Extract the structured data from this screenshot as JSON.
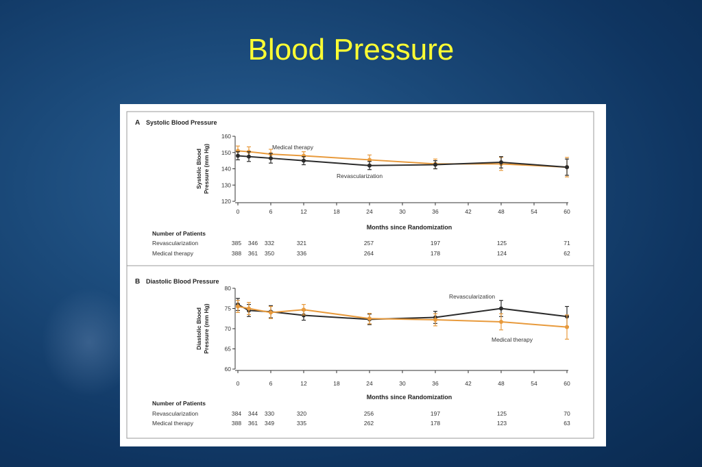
{
  "slide": {
    "title": "Blood Pressure"
  },
  "colors": {
    "revascularization": "#2b2b2b",
    "medical_therapy": "#e89a3c",
    "title": "#ffff33"
  },
  "chart_data": [
    {
      "type": "line",
      "panel_letter": "A",
      "title": "Systolic Blood Pressure",
      "xlabel": "Months since Randomization",
      "ylabel": [
        "Systolic Blood",
        "Pressure (mm Hg)"
      ],
      "xlim": [
        0,
        60
      ],
      "ylim": [
        120,
        160
      ],
      "xticks": [
        0,
        6,
        12,
        18,
        24,
        30,
        36,
        42,
        48,
        54,
        60
      ],
      "yticks": [
        120,
        130,
        140,
        150,
        160
      ],
      "grid": false,
      "x": [
        0,
        2,
        6,
        12,
        24,
        36,
        48,
        60
      ],
      "series": [
        {
          "name": "Medical therapy",
          "color": "#e89a3c",
          "values": [
            151,
            150.5,
            149,
            148,
            145.5,
            143,
            143,
            141
          ],
          "errors": [
            3,
            3,
            3,
            2.5,
            3,
            3,
            4,
            6
          ]
        },
        {
          "name": "Revascularization",
          "color": "#2b2b2b",
          "values": [
            148,
            147.5,
            146.5,
            145,
            142,
            142.5,
            144,
            141
          ],
          "errors": [
            2.5,
            3,
            3,
            2.5,
            2.5,
            2.5,
            3.5,
            5
          ]
        }
      ],
      "annotations": [
        "Medical therapy",
        "Revascularization"
      ],
      "patients": {
        "title": "Number of Patients",
        "rows": [
          {
            "label": "Revascularization",
            "values": [
              "385",
              "346",
              "332",
              "321",
              "257",
              "197",
              "125",
              "71"
            ]
          },
          {
            "label": "Medical therapy",
            "values": [
              "388",
              "361",
              "350",
              "336",
              "264",
              "178",
              "124",
              "62"
            ]
          }
        ]
      }
    },
    {
      "type": "line",
      "panel_letter": "B",
      "title": "Diastolic Blood Pressure",
      "xlabel": "Months since Randomization",
      "ylabel": [
        "Diastolic Blood",
        "Pressure (mm Hg)"
      ],
      "xlim": [
        0,
        60
      ],
      "ylim": [
        60,
        80
      ],
      "xticks": [
        0,
        6,
        12,
        18,
        24,
        30,
        36,
        42,
        48,
        54,
        60
      ],
      "yticks": [
        60,
        65,
        70,
        75,
        80
      ],
      "grid": false,
      "x": [
        0,
        2,
        6,
        12,
        24,
        36,
        48,
        60
      ],
      "series": [
        {
          "name": "Revascularization",
          "color": "#2b2b2b",
          "values": [
            76,
            74.5,
            74.2,
            73.3,
            72.3,
            72.8,
            75,
            73
          ],
          "errors": [
            1.5,
            1.5,
            1.5,
            1.2,
            1.3,
            1.5,
            2,
            2.5
          ]
        },
        {
          "name": "Medical therapy",
          "color": "#e89a3c",
          "values": [
            75.5,
            75,
            74,
            74.7,
            72.5,
            72.2,
            71.7,
            70.4
          ],
          "errors": [
            1.5,
            1.5,
            1.5,
            1.3,
            1.3,
            1.5,
            2,
            3
          ]
        }
      ],
      "annotations": [
        "Revascularization",
        "Medical therapy"
      ],
      "patients": {
        "title": "Number of Patients",
        "rows": [
          {
            "label": "Revascularization",
            "values": [
              "384",
              "344",
              "330",
              "320",
              "256",
              "197",
              "125",
              "70"
            ]
          },
          {
            "label": "Medical therapy",
            "values": [
              "388",
              "361",
              "349",
              "335",
              "262",
              "178",
              "123",
              "63"
            ]
          }
        ]
      }
    }
  ]
}
